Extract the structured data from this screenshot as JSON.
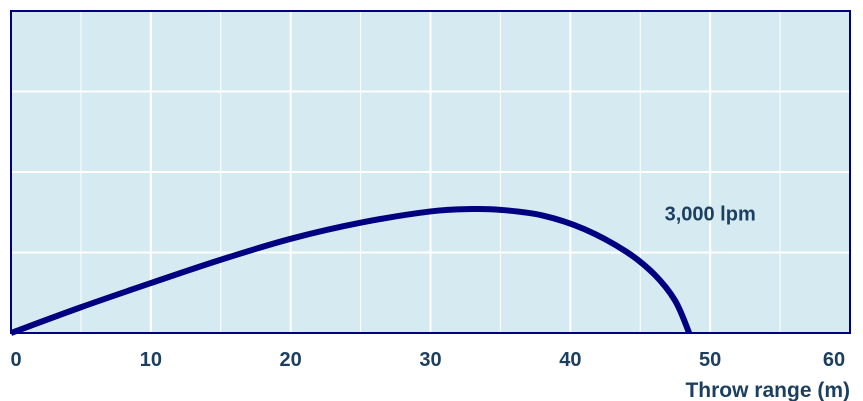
{
  "chart_data": {
    "type": "line",
    "xlabel": "Throw range (m)",
    "ylabel": "",
    "xlim": [
      0,
      60
    ],
    "ylim": [
      0,
      40
    ],
    "x_ticks": [
      0,
      10,
      20,
      30,
      40,
      50,
      60
    ],
    "x_tick_labels": [
      "0",
      "10",
      "20",
      "30",
      "40",
      "50",
      "60"
    ],
    "y_ticks": [
      0,
      10,
      20,
      30,
      40
    ],
    "grid": true,
    "series": [
      {
        "name": "3,000 lpm",
        "x": [
          0,
          5,
          10,
          15,
          20,
          25,
          30,
          33,
          35,
          38,
          41,
          44,
          46,
          47.5,
          48.5
        ],
        "y": [
          0,
          3.2,
          6.2,
          9.1,
          11.7,
          13.7,
          15.1,
          15.4,
          15.3,
          14.6,
          12.9,
          10.1,
          7.3,
          4.0,
          0
        ],
        "color": "#000080",
        "label_anchor": {
          "x": 50,
          "y": 14
        }
      }
    ],
    "colors": {
      "plot_background": "#d6eaf2",
      "grid": "#ffffff",
      "border": "#000080",
      "text": "#1c3f5f",
      "line": "#000080"
    }
  }
}
